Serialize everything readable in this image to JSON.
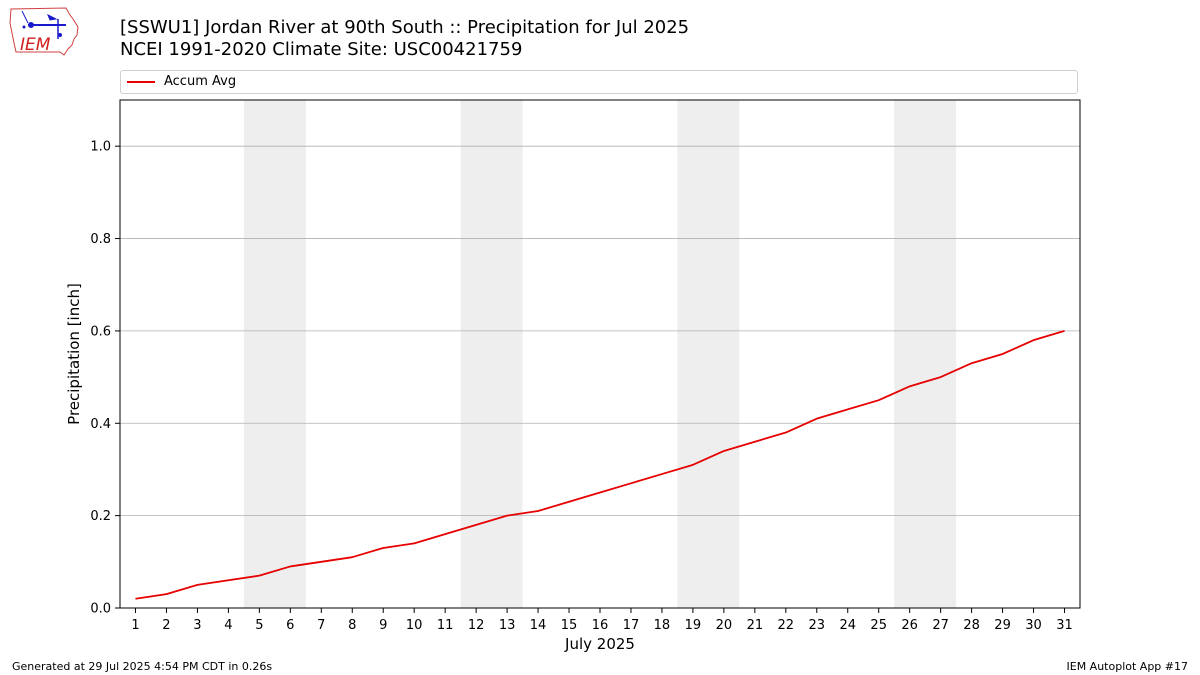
{
  "logo": {
    "text": "IEM"
  },
  "chart_data": {
    "type": "line",
    "title": "[SSWU1] Jordan River at 90th South :: Precipitation for Jul 2025",
    "subtitle": "NCEI 1991-2020 Climate Site: USC00421759",
    "xlabel": "July 2025",
    "ylabel": "Precipitation [inch]",
    "xlim": [
      0.5,
      31.5
    ],
    "ylim": [
      0,
      1.1
    ],
    "x_ticks": [
      1,
      2,
      3,
      4,
      5,
      6,
      7,
      8,
      9,
      10,
      11,
      12,
      13,
      14,
      15,
      16,
      17,
      18,
      19,
      20,
      21,
      22,
      23,
      24,
      25,
      26,
      27,
      28,
      29,
      30,
      31
    ],
    "y_ticks": [
      0.0,
      0.2,
      0.4,
      0.6,
      0.8,
      1.0
    ],
    "y_tick_labels": [
      "0.0",
      "0.2",
      "0.4",
      "0.6",
      "0.8",
      "1.0"
    ],
    "grid": "horizontal",
    "legend_position": "top",
    "weekend_shading": [
      [
        4.5,
        6.5
      ],
      [
        11.5,
        13.5
      ],
      [
        18.5,
        20.5
      ],
      [
        25.5,
        27.5
      ]
    ],
    "colors": {
      "line": "#e60000",
      "shade": "#eeeeee",
      "grid": "#b0b0b0"
    },
    "series": [
      {
        "name": "Accum Avg",
        "x": [
          1,
          2,
          3,
          4,
          5,
          6,
          7,
          8,
          9,
          10,
          11,
          12,
          13,
          14,
          15,
          16,
          17,
          18,
          19,
          20,
          21,
          22,
          23,
          24,
          25,
          26,
          27,
          28,
          29,
          30,
          31
        ],
        "values": [
          0.02,
          0.03,
          0.05,
          0.06,
          0.07,
          0.09,
          0.1,
          0.11,
          0.13,
          0.14,
          0.16,
          0.18,
          0.2,
          0.21,
          0.23,
          0.25,
          0.27,
          0.29,
          0.31,
          0.34,
          0.36,
          0.38,
          0.41,
          0.43,
          0.45,
          0.48,
          0.5,
          0.53,
          0.55,
          0.58,
          0.6
        ]
      }
    ]
  },
  "footer": {
    "left": "Generated at 29 Jul 2025 4:54 PM CDT in 0.26s",
    "right": "IEM Autoplot App #17"
  }
}
